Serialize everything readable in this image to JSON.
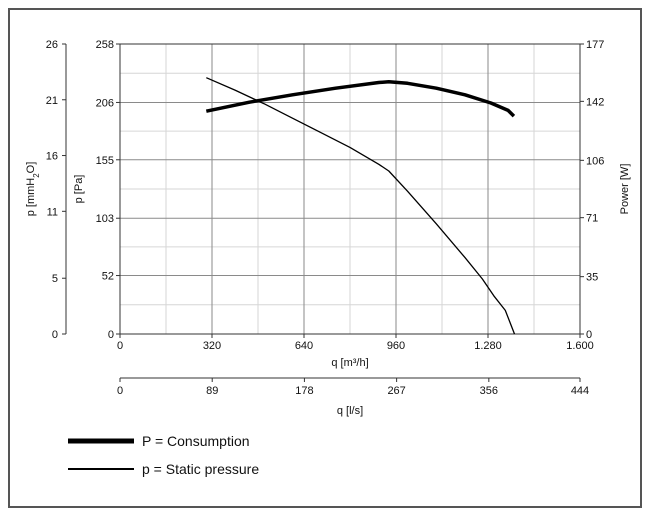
{
  "chart_data": {
    "type": "line",
    "x_primary": {
      "label": "q [m³/h]",
      "range": [
        0,
        1600
      ],
      "ticks": [
        0,
        320,
        640,
        960,
        1280,
        1600
      ],
      "tick_labels": [
        "0",
        "320",
        "640",
        "960",
        "1.280",
        "1.600"
      ]
    },
    "x_secondary": {
      "label": "q [l/s]",
      "range": [
        0,
        444
      ],
      "ticks": [
        0,
        89,
        178,
        267,
        356,
        444
      ],
      "tick_labels": [
        "0",
        "89",
        "178",
        "267",
        "356",
        "444"
      ]
    },
    "y_left_outer": {
      "label_main": "p [mmH",
      "label_sub": "2",
      "label_end": "O]",
      "range": [
        0,
        26
      ],
      "ticks": [
        0,
        5,
        11,
        16,
        21,
        26
      ],
      "tick_labels": [
        "0",
        "5",
        "11",
        "16",
        "21",
        "26"
      ]
    },
    "y_left_inner": {
      "label": "p [Pa]",
      "range": [
        0,
        258
      ],
      "ticks": [
        0,
        52,
        103,
        155,
        206,
        258
      ],
      "tick_labels": [
        "0",
        "52",
        "103",
        "155",
        "206",
        "258"
      ]
    },
    "y_right": {
      "label": "Power [W]",
      "range": [
        0,
        177
      ],
      "ticks": [
        0,
        35,
        71,
        106,
        142,
        177
      ],
      "tick_labels": [
        "0",
        "35",
        "71",
        "106",
        "142",
        "177"
      ]
    },
    "grid": true,
    "legend_position": "bottom-left",
    "series": [
      {
        "name": "P = Consumption",
        "axis": "y_right",
        "line_weight": "thick",
        "x": [
          300,
          450,
          600,
          750,
          900,
          935,
          1000,
          1100,
          1200,
          1290,
          1350,
          1370
        ],
        "y": [
          136,
          141.5,
          146,
          150,
          153.5,
          154,
          153,
          150,
          146,
          141,
          136.5,
          133
        ]
      },
      {
        "name": "p = Static pressure",
        "axis": "y_left_inner",
        "line_weight": "thin",
        "x": [
          300,
          400,
          500,
          600,
          700,
          800,
          900,
          935,
          1000,
          1100,
          1200,
          1260,
          1300,
          1340,
          1372
        ],
        "y": [
          228,
          217,
          205,
          192,
          179,
          166,
          151,
          145,
          127,
          98,
          68,
          49,
          34,
          21,
          0
        ]
      }
    ]
  }
}
